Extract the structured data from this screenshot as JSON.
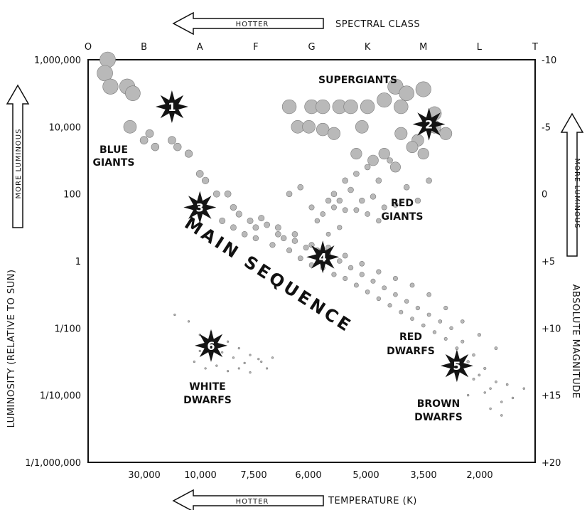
{
  "chart_data": {
    "type": "scatter",
    "title": "",
    "top_axis": {
      "label": "SPECTRAL CLASS",
      "arrow_label": "HOTTER",
      "ticks": [
        "O",
        "B",
        "A",
        "F",
        "G",
        "K",
        "M",
        "L",
        "T"
      ]
    },
    "bottom_axis": {
      "label": "TEMPERATURE (K)",
      "arrow_label": "HOTTER",
      "ticks": [
        "30,000",
        "10,000",
        "7,500",
        "6,000",
        "5,000",
        "3,500",
        "2,000"
      ]
    },
    "left_axis": {
      "label": "LUMINOSITY (RELATIVE TO SUN)",
      "arrow_label": "MORE LUMINOUS",
      "scale": "log",
      "ticks": [
        "1,000,000",
        "10,000",
        "100",
        "1",
        "1/100",
        "1/10,000",
        "1/1,000,000"
      ]
    },
    "right_axis": {
      "label": "ABSOLUTE MAGNITUDE",
      "arrow_label": "MORE LUMINOUS",
      "ticks": [
        "-10",
        "-5",
        "0",
        "+5",
        "+10",
        "+15",
        "+20"
      ]
    },
    "regions": [
      {
        "id": "main-sequence",
        "text": "MAIN SEQUENCE"
      },
      {
        "id": "supergiants",
        "text": "SUPERGIANTS"
      },
      {
        "id": "blue-giants",
        "lines": [
          "BLUE",
          "GIANTS"
        ]
      },
      {
        "id": "red-giants",
        "lines": [
          "RED",
          "GIANTS"
        ]
      },
      {
        "id": "red-dwarfs",
        "lines": [
          "RED",
          "DWARFS"
        ]
      },
      {
        "id": "white-dwarfs",
        "lines": [
          "WHITE",
          "DWARFS"
        ]
      },
      {
        "id": "brown-dwarfs",
        "lines": [
          "BROWN",
          "DWARFS"
        ]
      }
    ],
    "markers": [
      {
        "label": "1",
        "class_pos": 1.5,
        "abs_mag": -6.5
      },
      {
        "label": "2",
        "class_pos": 6.1,
        "abs_mag": -5.2
      },
      {
        "label": "3",
        "class_pos": 2.0,
        "abs_mag": 1.0
      },
      {
        "label": "4",
        "class_pos": 4.2,
        "abs_mag": 4.7
      },
      {
        "label": "5",
        "class_pos": 6.6,
        "abs_mag": 12.8
      },
      {
        "label": "6",
        "class_pos": 2.2,
        "abs_mag": 11.3
      }
    ],
    "stars": {
      "supergiants": [
        [
          0.35,
          -10
        ],
        [
          0.3,
          -9
        ],
        [
          0.4,
          -8
        ],
        [
          0.7,
          -8
        ],
        [
          0.8,
          -7.5
        ],
        [
          0.75,
          -5
        ],
        [
          3.6,
          -6.5
        ],
        [
          4,
          -6.5
        ],
        [
          4.2,
          -6.5
        ],
        [
          4.5,
          -6.5
        ],
        [
          4.7,
          -6.5
        ],
        [
          5,
          -6.5
        ],
        [
          5.3,
          -7
        ],
        [
          5.5,
          -8
        ],
        [
          5.6,
          -6.5
        ],
        [
          5.7,
          -7.5
        ],
        [
          6,
          -7.8
        ],
        [
          6.2,
          -6
        ],
        [
          3.75,
          -5
        ],
        [
          3.95,
          -5
        ],
        [
          4.2,
          -4.8
        ],
        [
          4.4,
          -4.5
        ],
        [
          4.9,
          -5
        ],
        [
          5.6,
          -4.5
        ],
        [
          5.9,
          -4
        ],
        [
          6.2,
          -5
        ],
        [
          6.4,
          -4.5
        ],
        [
          4.8,
          -3
        ],
        [
          5.1,
          -2.5
        ],
        [
          5.3,
          -3
        ],
        [
          5.5,
          -2
        ],
        [
          5.8,
          -3.5
        ],
        [
          6,
          -3
        ]
      ],
      "red_giants": [
        [
          4.4,
          0
        ],
        [
          4.6,
          -1
        ],
        [
          4.8,
          -1.5
        ],
        [
          5,
          -2
        ],
        [
          5.2,
          -1
        ],
        [
          5.4,
          -2.5
        ],
        [
          4.3,
          0.5
        ],
        [
          4.5,
          0.5
        ],
        [
          4.7,
          -0.3
        ],
        [
          4.9,
          0.5
        ],
        [
          5.1,
          0.2
        ],
        [
          5.3,
          1
        ],
        [
          5.5,
          0.8
        ],
        [
          5.7,
          -0.5
        ],
        [
          5.9,
          0.5
        ],
        [
          6.1,
          -1
        ],
        [
          4.2,
          1.5
        ],
        [
          4.4,
          1
        ],
        [
          4.6,
          1.2
        ],
        [
          4.8,
          1.2
        ],
        [
          5,
          1.5
        ],
        [
          5.2,
          2
        ],
        [
          3.6,
          0
        ],
        [
          3.8,
          -0.5
        ],
        [
          4,
          1
        ],
        [
          4.1,
          2
        ],
        [
          4.3,
          3
        ],
        [
          4.5,
          2.5
        ]
      ],
      "main_sequence": [
        [
          1,
          -4
        ],
        [
          1.1,
          -4.5
        ],
        [
          1.2,
          -3.5
        ],
        [
          1.5,
          -4
        ],
        [
          1.6,
          -3.5
        ],
        [
          1.8,
          -3
        ],
        [
          2,
          -1.5
        ],
        [
          2.1,
          -1
        ],
        [
          2.3,
          0
        ],
        [
          2.5,
          0
        ],
        [
          2.6,
          1
        ],
        [
          2.7,
          1.5
        ],
        [
          2.9,
          2
        ],
        [
          3,
          2.5
        ],
        [
          3.2,
          2.3
        ],
        [
          3.4,
          3
        ],
        [
          3.5,
          3.3
        ],
        [
          3.7,
          3.5
        ],
        [
          3.9,
          4
        ],
        [
          4.1,
          4.2
        ],
        [
          4.3,
          4.5
        ],
        [
          4.5,
          5
        ],
        [
          4.7,
          5.5
        ],
        [
          4.9,
          6
        ],
        [
          5.1,
          6.5
        ],
        [
          5.3,
          7
        ],
        [
          5.5,
          7.5
        ],
        [
          5.7,
          8
        ],
        [
          5.9,
          8.5
        ],
        [
          6.1,
          9
        ],
        [
          6.3,
          9.5
        ],
        [
          6.5,
          10
        ],
        [
          6.7,
          11
        ],
        [
          6.9,
          12
        ],
        [
          7.1,
          13
        ],
        [
          7.3,
          14
        ],
        [
          2.4,
          2
        ],
        [
          2.6,
          2.5
        ],
        [
          2.8,
          3
        ],
        [
          3,
          3.3
        ],
        [
          3.3,
          3.8
        ],
        [
          3.6,
          4.2
        ],
        [
          3.8,
          4.8
        ],
        [
          4,
          5.3
        ],
        [
          4.2,
          5.5
        ],
        [
          4.4,
          6
        ],
        [
          4.6,
          6.3
        ],
        [
          4.8,
          6.8
        ],
        [
          5,
          7.3
        ],
        [
          5.2,
          7.8
        ],
        [
          5.4,
          8.3
        ],
        [
          5.6,
          8.8
        ],
        [
          5.8,
          9.3
        ],
        [
          6,
          9.8
        ],
        [
          6.2,
          10.3
        ],
        [
          6.4,
          10.8
        ],
        [
          6.6,
          11.5
        ],
        [
          6.8,
          12.5
        ],
        [
          7,
          13.5
        ],
        [
          7.2,
          14.5
        ],
        [
          3.1,
          1.8
        ],
        [
          3.4,
          2.5
        ],
        [
          3.7,
          3
        ],
        [
          4,
          3.8
        ],
        [
          4.3,
          4
        ],
        [
          4.6,
          4.6
        ],
        [
          4.9,
          5.2
        ],
        [
          5.2,
          5.8
        ],
        [
          5.5,
          6.3
        ],
        [
          5.8,
          6.8
        ],
        [
          6.1,
          7.5
        ],
        [
          6.4,
          8.5
        ],
        [
          6.7,
          9.5
        ],
        [
          7,
          10.5
        ],
        [
          7.3,
          11.5
        ],
        [
          6.6,
          13
        ],
        [
          6.9,
          13.8
        ],
        [
          7.1,
          14.8
        ],
        [
          7.4,
          15.5
        ],
        [
          7.5,
          14.2
        ],
        [
          6.8,
          15
        ],
        [
          7.6,
          15.2
        ],
        [
          7.8,
          14.5
        ],
        [
          7.2,
          16
        ],
        [
          7.4,
          16.5
        ]
      ],
      "white_dwarfs": [
        [
          1.55,
          9
        ],
        [
          1.8,
          9.5
        ],
        [
          2,
          10.5
        ],
        [
          2.2,
          10.3
        ],
        [
          2.5,
          11
        ],
        [
          2.7,
          11.5
        ],
        [
          2.9,
          12
        ],
        [
          3.1,
          12.5
        ],
        [
          3.2,
          13
        ],
        [
          1.9,
          12.5
        ],
        [
          2.1,
          13
        ],
        [
          2.3,
          12.8
        ],
        [
          2.5,
          13.2
        ],
        [
          2.7,
          13
        ],
        [
          2.9,
          13.3
        ],
        [
          3.05,
          12.3
        ],
        [
          2.6,
          12.2
        ],
        [
          2.4,
          11.8
        ],
        [
          2,
          11.7
        ],
        [
          2.8,
          12.6
        ],
        [
          3.3,
          12.2
        ]
      ]
    }
  },
  "colors": {
    "star_fill": "#b9b9b9",
    "star_stroke": "#7a7a7a",
    "marker": "#141414",
    "axis": "#111111"
  }
}
